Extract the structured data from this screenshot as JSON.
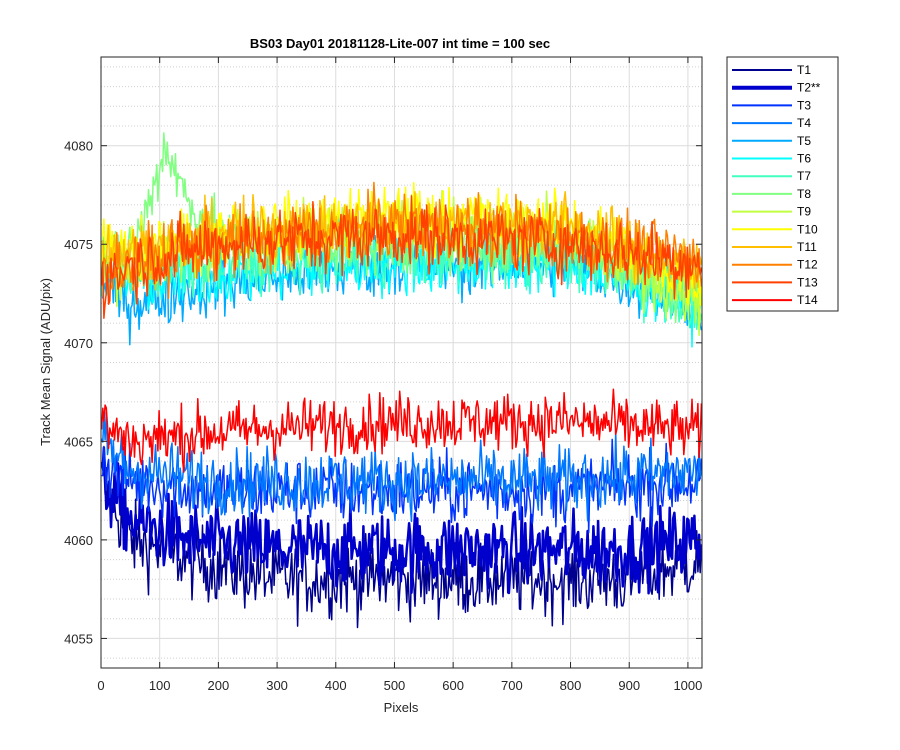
{
  "chart_data": {
    "type": "line",
    "title": "BS03 Day01 20181128-Lite-007 int time = 100 sec",
    "xlabel": "Pixels",
    "ylabel": "Track Mean Signal (ADU/pix)",
    "xlim": [
      0,
      1024
    ],
    "ylim": [
      4053.5,
      4084.5
    ],
    "xticks": [
      0,
      100,
      200,
      300,
      400,
      500,
      600,
      700,
      800,
      900,
      1000
    ],
    "yticks": [
      4055,
      4060,
      4065,
      4070,
      4075,
      4080
    ],
    "grid": true,
    "minor_grid": true,
    "legend_position": "outside-right-top",
    "x_start": 1,
    "x_end": 1024,
    "series": [
      {
        "name": "T1",
        "color": "#00008F",
        "width": 1.5,
        "profile": [
          [
            1,
            4063
          ],
          [
            50,
            4060
          ],
          [
            150,
            4059
          ],
          [
            300,
            4058
          ],
          [
            500,
            4058
          ],
          [
            700,
            4058
          ],
          [
            900,
            4058
          ],
          [
            1024,
            4059
          ]
        ],
        "noise": 1.8
      },
      {
        "name": "T2**",
        "color": "#0000CC",
        "width": 2.5,
        "profile": [
          [
            1,
            4063
          ],
          [
            50,
            4061
          ],
          [
            150,
            4060
          ],
          [
            300,
            4059.5
          ],
          [
            500,
            4059.5
          ],
          [
            700,
            4059.5
          ],
          [
            900,
            4059.5
          ],
          [
            1024,
            4060
          ]
        ],
        "noise": 1.8
      },
      {
        "name": "T3",
        "color": "#0033FF",
        "width": 1.5,
        "profile": [
          [
            1,
            4064
          ],
          [
            50,
            4063
          ],
          [
            200,
            4062.5
          ],
          [
            500,
            4062.5
          ],
          [
            800,
            4062.5
          ],
          [
            1024,
            4063
          ]
        ],
        "noise": 1.6
      },
      {
        "name": "T4",
        "color": "#0077FF",
        "width": 1.5,
        "profile": [
          [
            1,
            4065
          ],
          [
            50,
            4063.5
          ],
          [
            200,
            4063
          ],
          [
            500,
            4063
          ],
          [
            800,
            4063
          ],
          [
            1024,
            4063.5
          ]
        ],
        "noise": 1.6
      },
      {
        "name": "T5",
        "color": "#00AAFF",
        "width": 1.5,
        "profile": [
          [
            1,
            4073
          ],
          [
            50,
            4072
          ],
          [
            200,
            4073
          ],
          [
            500,
            4074
          ],
          [
            800,
            4074
          ],
          [
            1024,
            4072
          ]
        ],
        "noise": 1.5
      },
      {
        "name": "T6",
        "color": "#00FFFF",
        "width": 1.5,
        "profile": [
          [
            1,
            4074
          ],
          [
            50,
            4073
          ],
          [
            200,
            4073.5
          ],
          [
            500,
            4074
          ],
          [
            800,
            4074
          ],
          [
            1024,
            4072
          ]
        ],
        "noise": 1.5
      },
      {
        "name": "T7",
        "color": "#40FFBF",
        "width": 1.5,
        "profile": [
          [
            1,
            4074
          ],
          [
            50,
            4073.5
          ],
          [
            200,
            4074
          ],
          [
            500,
            4074.5
          ],
          [
            800,
            4074.5
          ],
          [
            1024,
            4072
          ]
        ],
        "noise": 1.5
      },
      {
        "name": "T8",
        "color": "#80FF80",
        "width": 1.5,
        "profile": [
          [
            1,
            4074
          ],
          [
            60,
            4075
          ],
          [
            110,
            4080
          ],
          [
            150,
            4077
          ],
          [
            220,
            4075
          ],
          [
            500,
            4075
          ],
          [
            800,
            4075
          ],
          [
            1024,
            4072
          ]
        ],
        "noise": 1.5
      },
      {
        "name": "T9",
        "color": "#BFFF40",
        "width": 1.5,
        "profile": [
          [
            1,
            4074
          ],
          [
            50,
            4074
          ],
          [
            200,
            4075
          ],
          [
            500,
            4076
          ],
          [
            800,
            4075.5
          ],
          [
            1024,
            4072
          ]
        ],
        "noise": 1.5
      },
      {
        "name": "T10",
        "color": "#FFFF00",
        "width": 1.5,
        "profile": [
          [
            1,
            4075
          ],
          [
            50,
            4074.5
          ],
          [
            200,
            4075.5
          ],
          [
            500,
            4076.5
          ],
          [
            800,
            4076
          ],
          [
            1024,
            4073
          ]
        ],
        "noise": 1.5
      },
      {
        "name": "T11",
        "color": "#FFBF00",
        "width": 1.5,
        "profile": [
          [
            1,
            4075
          ],
          [
            50,
            4074.5
          ],
          [
            200,
            4075.5
          ],
          [
            500,
            4076
          ],
          [
            800,
            4076
          ],
          [
            1024,
            4073.5
          ]
        ],
        "noise": 1.5
      },
      {
        "name": "T12",
        "color": "#FF8000",
        "width": 1.5,
        "profile": [
          [
            1,
            4074
          ],
          [
            50,
            4074
          ],
          [
            200,
            4075
          ],
          [
            500,
            4076
          ],
          [
            800,
            4075.5
          ],
          [
            1024,
            4074
          ]
        ],
        "noise": 1.6
      },
      {
        "name": "T13",
        "color": "#FF4000",
        "width": 1.5,
        "profile": [
          [
            1,
            4073
          ],
          [
            50,
            4074
          ],
          [
            200,
            4075
          ],
          [
            500,
            4075.5
          ],
          [
            800,
            4075
          ],
          [
            1024,
            4074
          ]
        ],
        "noise": 1.6
      },
      {
        "name": "T14",
        "color": "#FF0000",
        "width": 1.5,
        "profile": [
          [
            1,
            4066
          ],
          [
            50,
            4065
          ],
          [
            200,
            4065.5
          ],
          [
            500,
            4066
          ],
          [
            800,
            4066
          ],
          [
            1024,
            4065.5
          ]
        ],
        "noise": 1.4
      }
    ]
  }
}
